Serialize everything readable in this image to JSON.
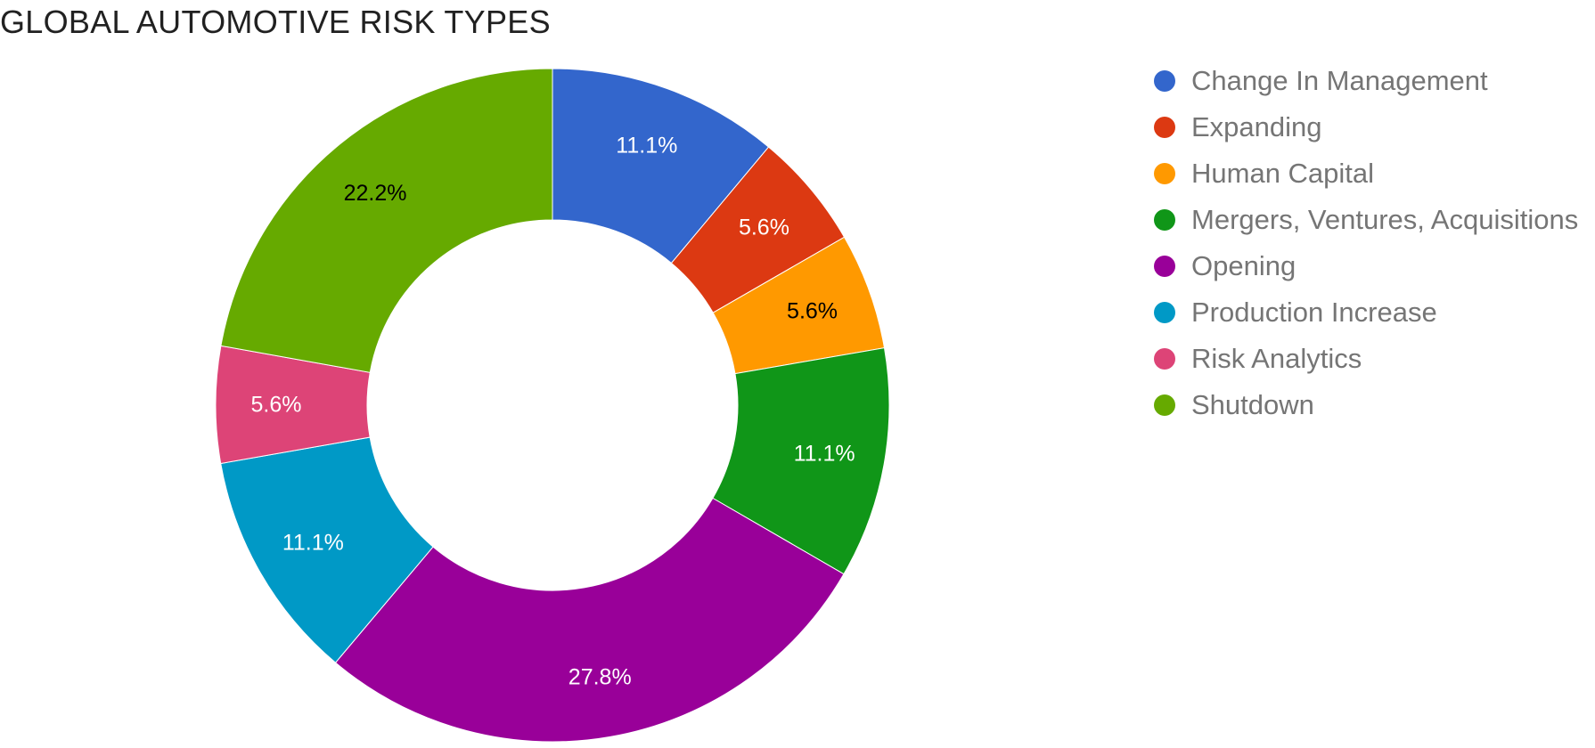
{
  "chart_data": {
    "type": "pie",
    "donut": true,
    "title": "GLOBAL AUTOMOTIVE RISK TYPES",
    "categories": [
      "Change In Management",
      "Expanding",
      "Human Capital",
      "Mergers, Ventures, Acquisitions",
      "Opening",
      "Production Increase",
      "Risk Analytics",
      "Shutdown"
    ],
    "values": [
      11.1,
      5.6,
      5.6,
      11.1,
      27.8,
      11.1,
      5.6,
      22.2
    ],
    "labels": [
      "11.1%",
      "5.6%",
      "5.6%",
      "11.1%",
      "27.8%",
      "11.1%",
      "5.6%",
      "22.2%"
    ],
    "colors": [
      "#3366cc",
      "#dc3912",
      "#ff9900",
      "#109618",
      "#990099",
      "#0099c6",
      "#dd4477",
      "#66aa00"
    ],
    "label_colors": [
      "#ffffff",
      "#ffffff",
      "#000000",
      "#ffffff",
      "#ffffff",
      "#ffffff",
      "#ffffff",
      "#000000"
    ],
    "legend_position": "right"
  }
}
